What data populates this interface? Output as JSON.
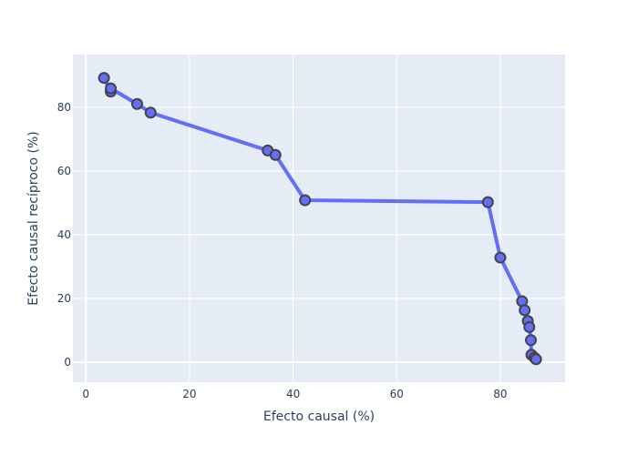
{
  "chart_data": {
    "type": "scatter",
    "mode": "lines+markers",
    "title": "",
    "xlabel": "Efecto causal (%)",
    "ylabel": "Efecto causal recíproco (%)",
    "xlim": [
      -2.5,
      92.5
    ],
    "ylim": [
      -6.3,
      96.5
    ],
    "x_ticks": [
      0,
      20,
      40,
      60,
      80
    ],
    "y_ticks": [
      0,
      20,
      40,
      60,
      80
    ],
    "grid": true,
    "legend": "none",
    "colors": {
      "plot_background": "#e5ecf6",
      "grid": "#ffffff",
      "line": "#636efa",
      "marker_fill": "#636efa",
      "marker_outline": "#444444",
      "text": "#2a3f5f"
    },
    "series": [
      {
        "x": [
          3.5,
          4.8,
          4.8,
          9.9,
          12.5,
          35.1,
          36.6,
          42.3,
          77.6,
          80.0,
          84.2,
          84.7,
          85.3,
          85.6,
          85.9,
          86.0,
          86.6,
          86.9
        ],
        "y": [
          89.2,
          84.9,
          85.9,
          81.0,
          78.3,
          66.4,
          65.0,
          50.8,
          50.2,
          32.8,
          19.1,
          16.3,
          12.9,
          11.0,
          6.9,
          2.3,
          1.4,
          0.9
        ]
      }
    ]
  }
}
